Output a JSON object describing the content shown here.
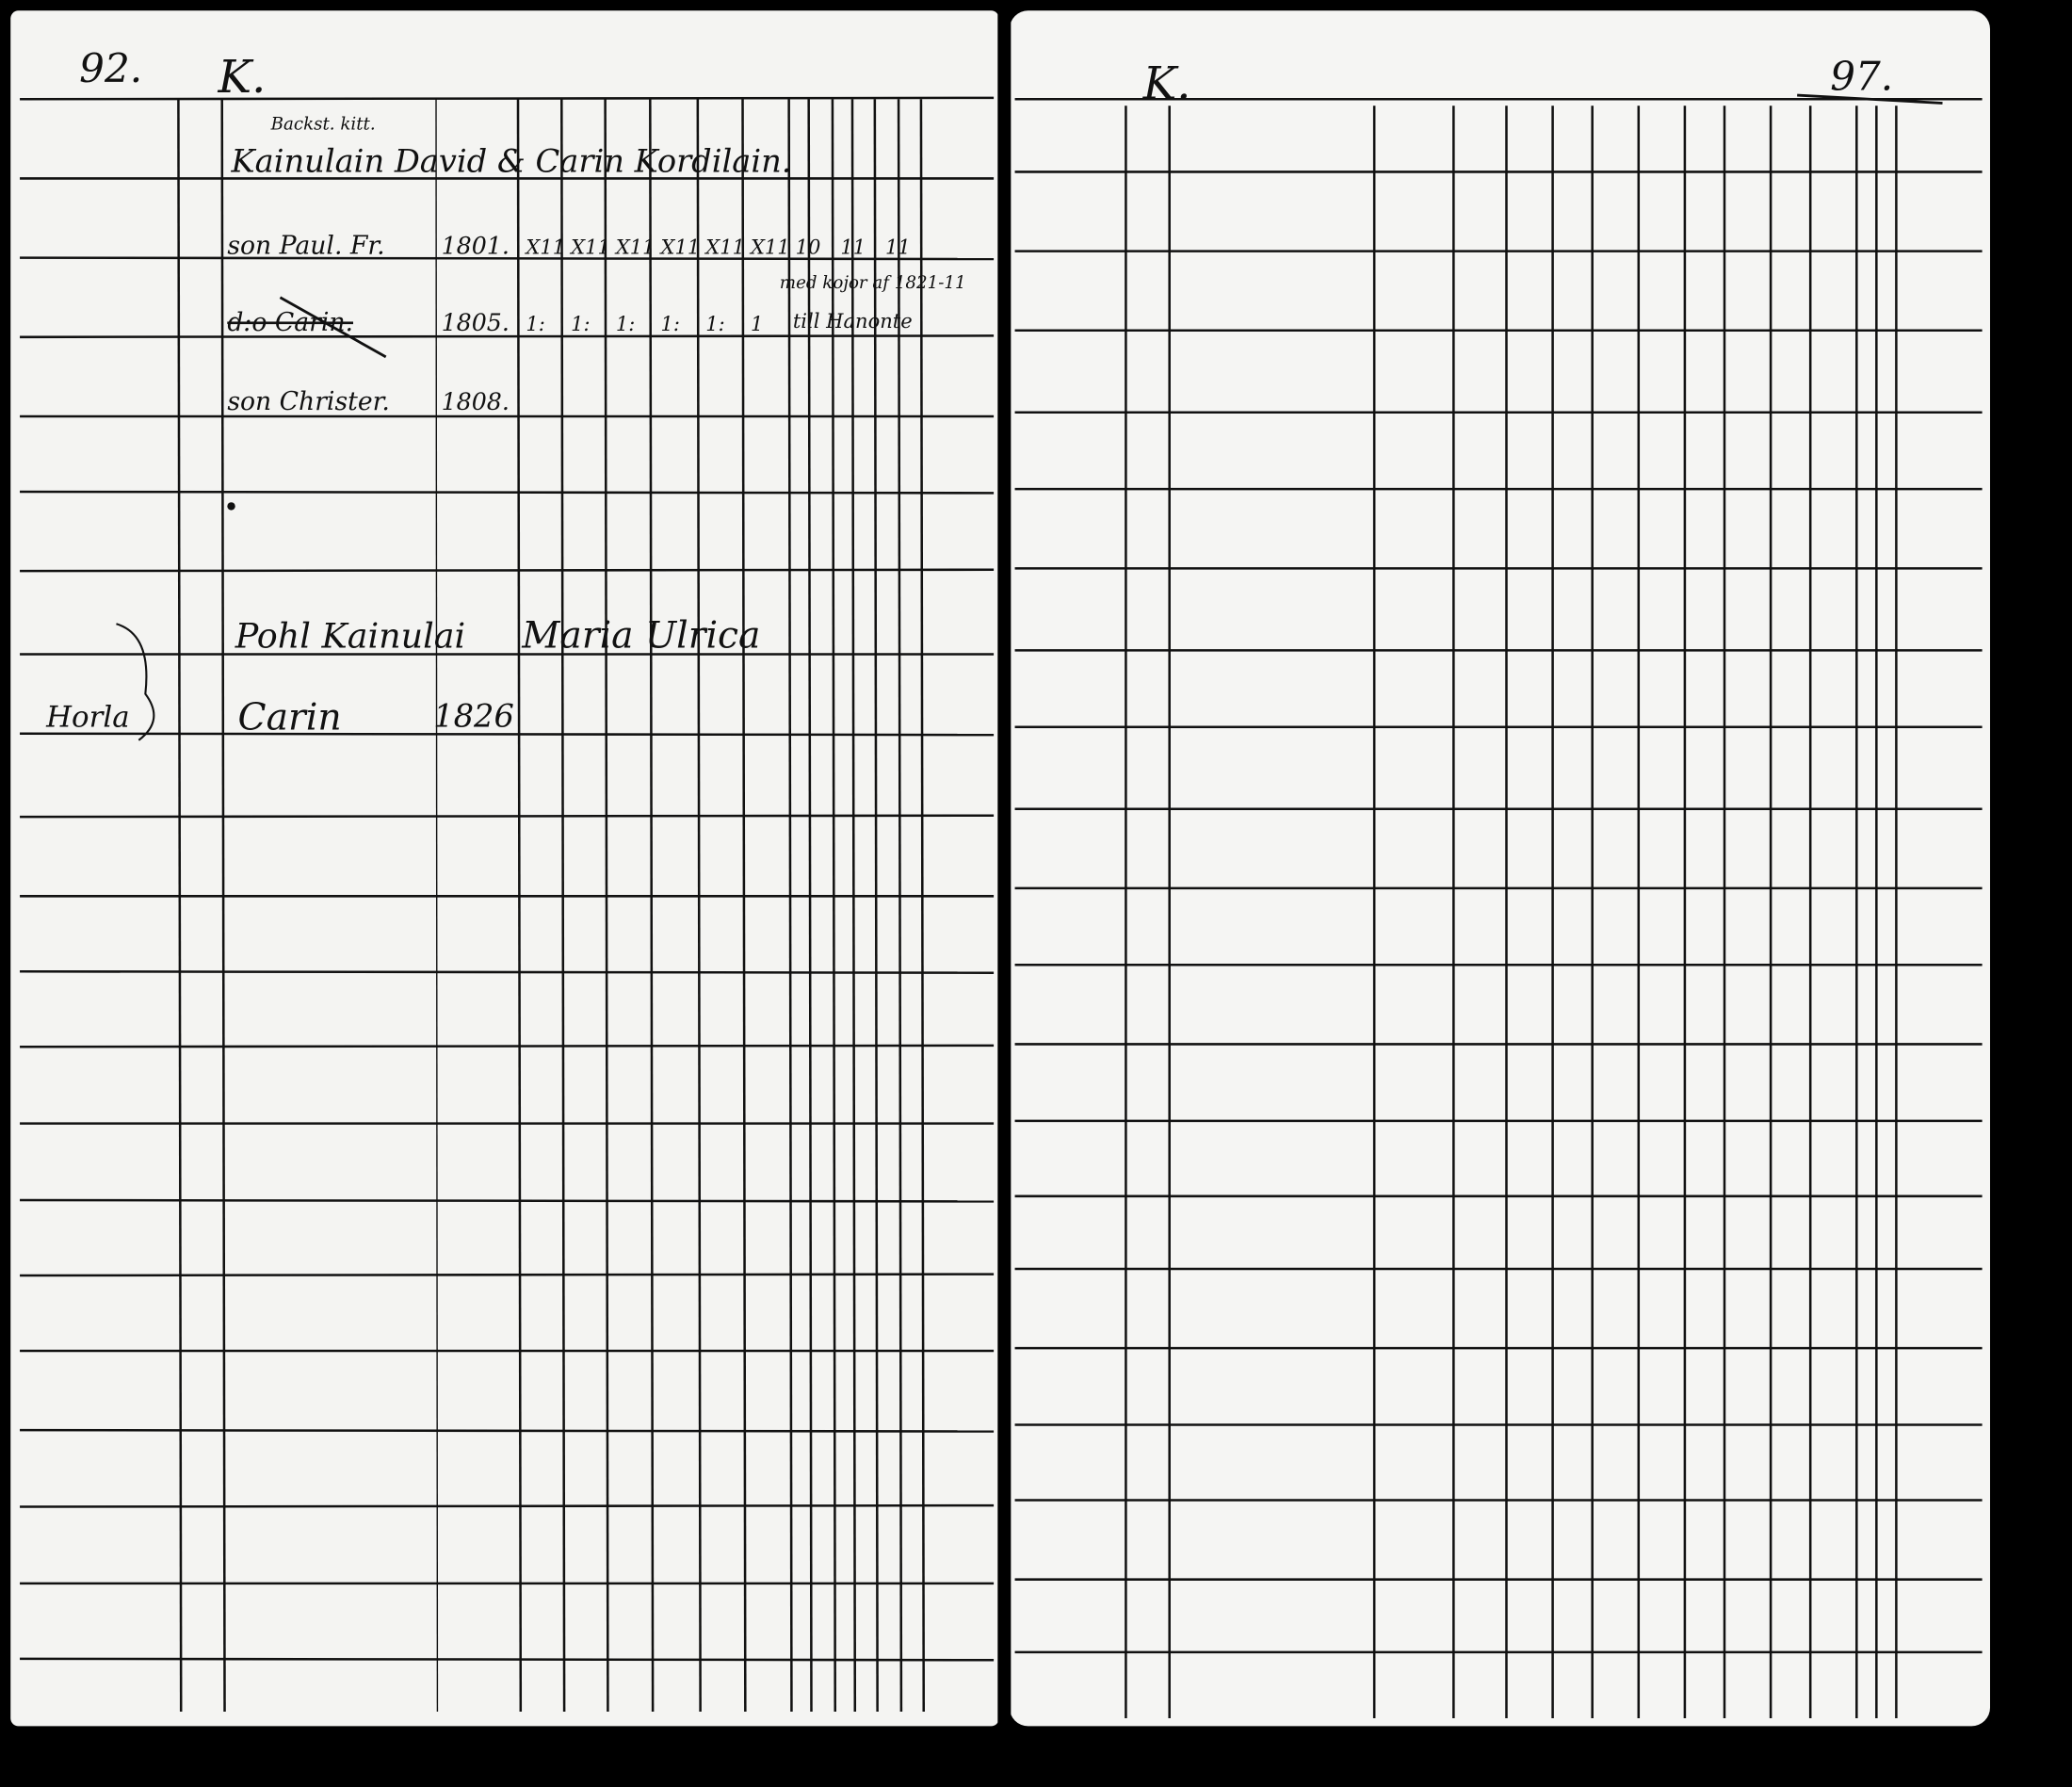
{
  "left_page": {
    "page_number": "92.",
    "letter": "K.",
    "entries": [
      {
        "note": "Backst. kitt.",
        "name": "Kainulain David & Carin Kordilain."
      },
      {
        "name": "son Paul. Fr.",
        "year": "1801.",
        "marks": [
          "X11",
          "X11",
          "X11",
          "X11",
          "X11",
          "X11",
          "10",
          "11",
          "11"
        ]
      },
      {
        "name": "d:o Carin.",
        "year": "1805.",
        "marks": [
          "1:",
          "1:",
          "1:",
          "1:",
          "1:",
          "1"
        ],
        "annotation_1": "med kojor af 1821-11",
        "annotation_2": "till Hanonte"
      },
      {
        "name": "son Christer.",
        "year": "1808."
      },
      {
        "name": "Pohl Kainulai",
        "spouse": "Maria Ulrica"
      },
      {
        "margin_note": "Horla",
        "name": "Carin",
        "year": "1826"
      }
    ]
  },
  "right_page": {
    "letter": "K.",
    "page_number": "97."
  },
  "colors": {
    "paper": "#f4f4f2",
    "ink": "#111111",
    "background": "#000000"
  }
}
